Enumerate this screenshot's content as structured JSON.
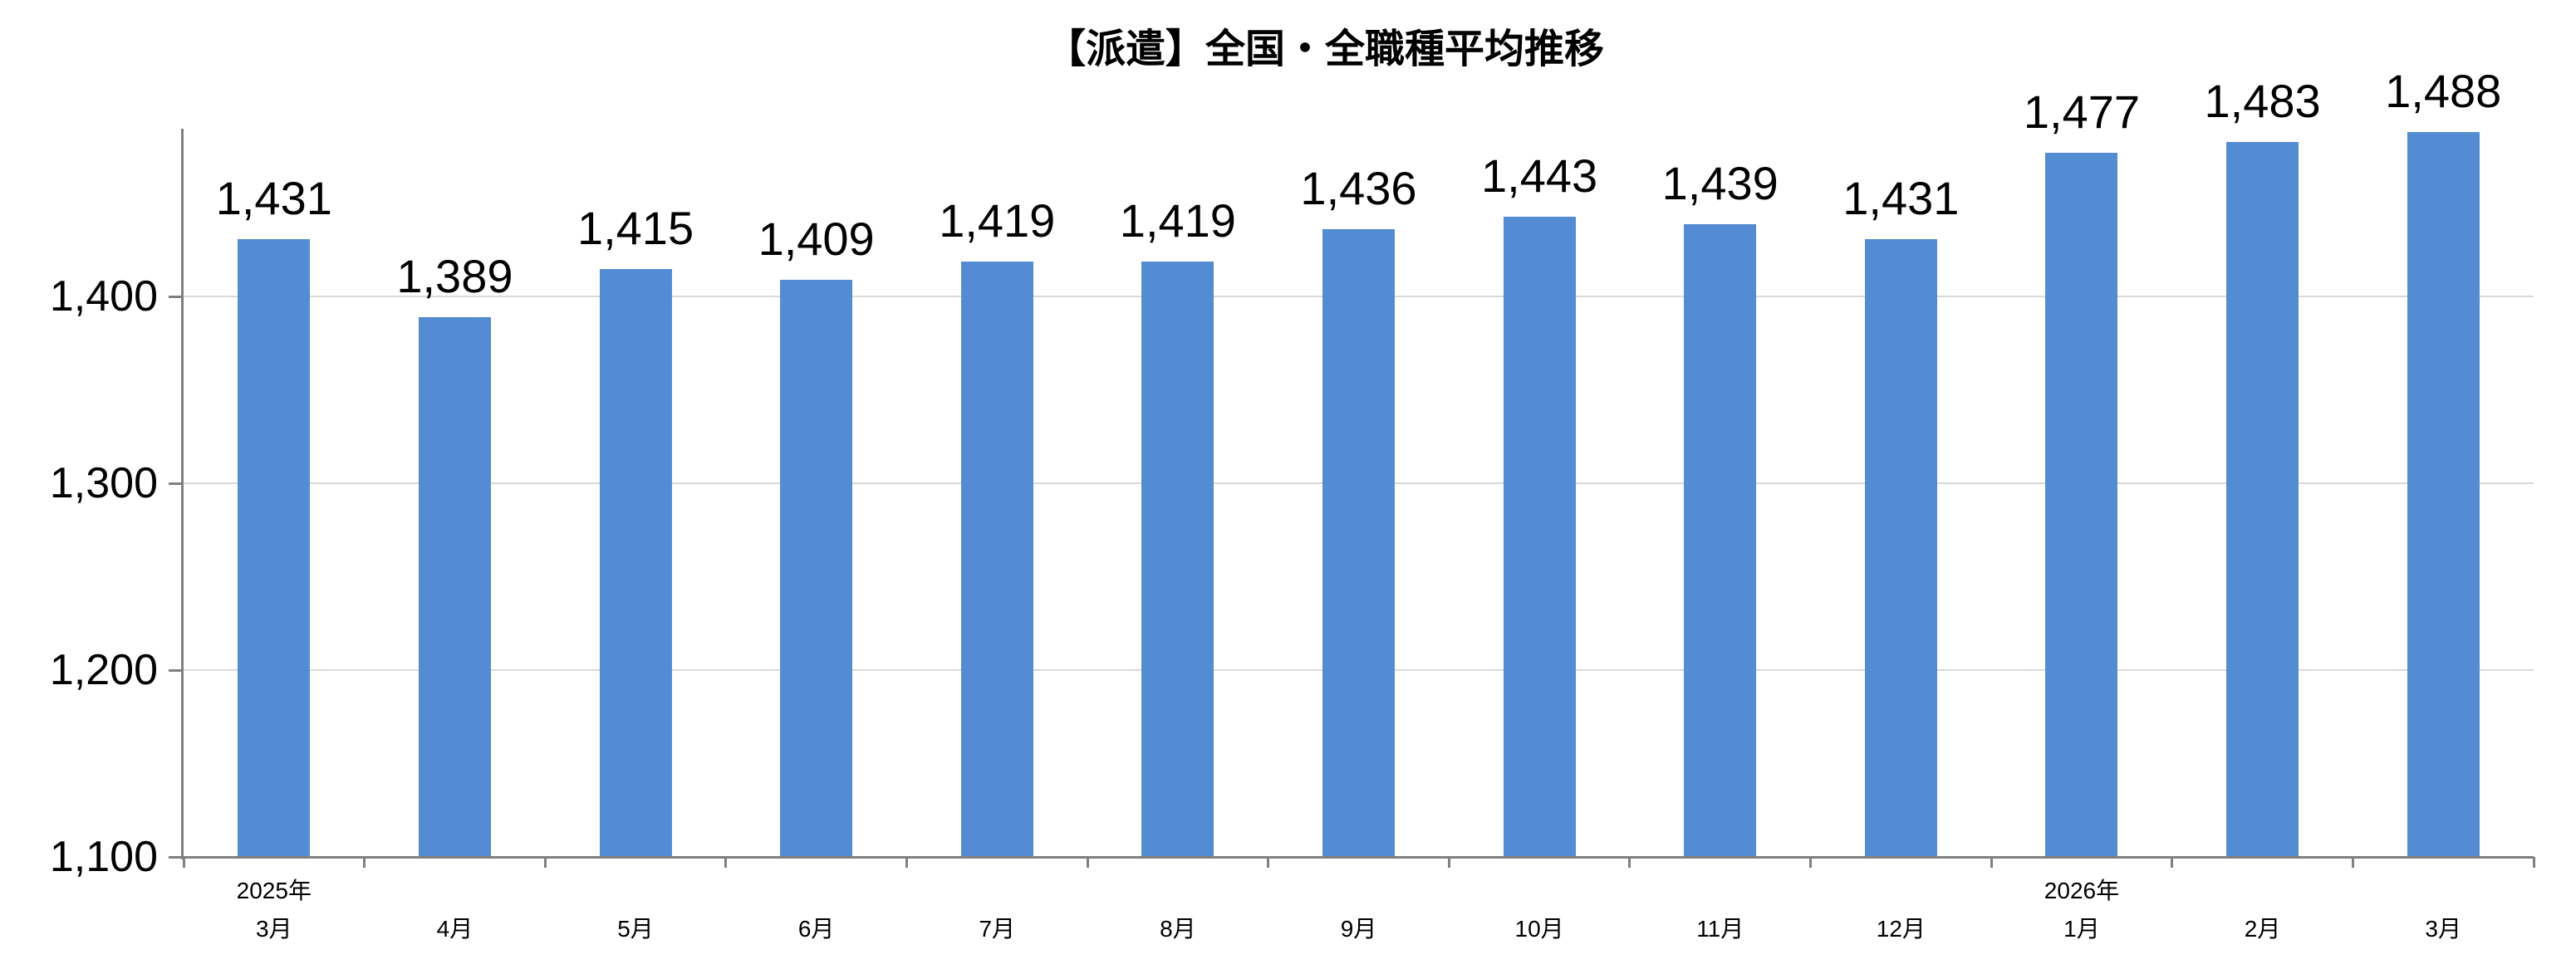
{
  "chart_data": {
    "type": "bar",
    "title": "【派遣】全国・全職種平均推移",
    "categories": [
      "3月",
      "4月",
      "5月",
      "6月",
      "7月",
      "8月",
      "9月",
      "10月",
      "11月",
      "12月",
      "1月",
      "2月",
      "3月"
    ],
    "year_labels": [
      {
        "index": 0,
        "label": "2025年"
      },
      {
        "index": 10,
        "label": "2026年"
      }
    ],
    "values": [
      1431,
      1389,
      1415,
      1409,
      1419,
      1419,
      1436,
      1443,
      1439,
      1431,
      1477,
      1483,
      1488
    ],
    "value_labels": [
      "1,431",
      "1,389",
      "1,415",
      "1,409",
      "1,419",
      "1,419",
      "1,436",
      "1,443",
      "1,439",
      "1,431",
      "1,477",
      "1,483",
      "1,488"
    ],
    "y_ticks": [
      "1,100",
      "1,200",
      "1,300",
      "1,400"
    ],
    "y_tick_values": [
      1100,
      1200,
      1300,
      1400
    ],
    "ylim": [
      1100,
      1490
    ],
    "grid": true,
    "legend": false,
    "bar_color": "#548CD4",
    "gridline_color": "#D9D9D9",
    "axis_color": "#808080",
    "text_color": "#000000"
  }
}
